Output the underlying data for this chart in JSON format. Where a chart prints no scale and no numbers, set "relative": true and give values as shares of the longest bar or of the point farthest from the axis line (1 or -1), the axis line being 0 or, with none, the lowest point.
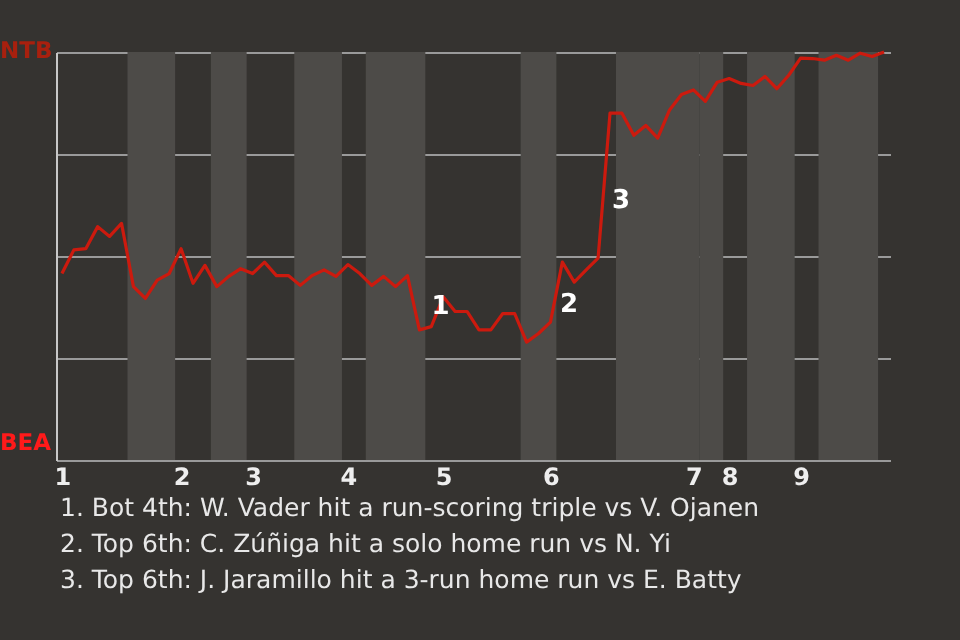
{
  "chart_data": {
    "type": "line",
    "relative": true,
    "categories": [
      "1",
      null,
      null,
      null,
      null,
      null,
      null,
      null,
      null,
      null,
      "2",
      null,
      null,
      null,
      null,
      null,
      "3",
      null,
      null,
      null,
      null,
      null,
      null,
      null,
      "4",
      null,
      null,
      null,
      null,
      null,
      null,
      null,
      "5",
      null,
      null,
      null,
      null,
      null,
      null,
      null,
      null,
      "6",
      null,
      null,
      null,
      null,
      null,
      null,
      null,
      null,
      null,
      null,
      null,
      "7",
      null,
      null,
      "8",
      null,
      null,
      null,
      null,
      null,
      "9",
      null,
      null,
      null,
      null,
      null,
      null,
      null
    ],
    "series": [
      {
        "color": "#cc1a0e",
        "values": [
          0.457,
          0.515,
          0.518,
          0.572,
          0.548,
          0.58,
          0.425,
          0.396,
          0.441,
          0.457,
          0.518,
          0.433,
          0.477,
          0.425,
          0.45,
          0.469,
          0.457,
          0.485,
          0.452,
          0.452,
          0.428,
          0.452,
          0.466,
          0.45,
          0.479,
          0.457,
          0.428,
          0.45,
          0.425,
          0.452,
          0.319,
          0.327,
          0.4,
          0.364,
          0.364,
          0.319,
          0.319,
          0.359,
          0.359,
          0.289,
          0.31,
          0.338,
          0.485,
          0.436,
          0.466,
          0.495,
          0.85,
          0.85,
          0.796,
          0.82,
          0.789,
          0.858,
          0.896,
          0.907,
          0.879,
          0.926,
          0.935,
          0.923,
          0.918,
          0.94,
          0.91,
          0.943,
          0.985,
          0.984,
          0.98,
          0.992,
          0.98,
          0.997,
          0.989,
          1
        ]
      }
    ],
    "grid": "y",
    "marker": "none",
    "line_style": "solid",
    "annotations": [
      {
        "text": "1",
        "y": 0.319
      },
      "NTB",
      "BEA",
      "2",
      "3",
      "1. Bot 4th: W. Vader hit a run-scoring triple vs V. Ojanen",
      "2. Top 6th: C. Zúñiga hit a solo home run vs N. Yi",
      "3. Top 6th: J. Jaramillo hit a 3-run home run vs E. Batty"
    ]
  }
}
